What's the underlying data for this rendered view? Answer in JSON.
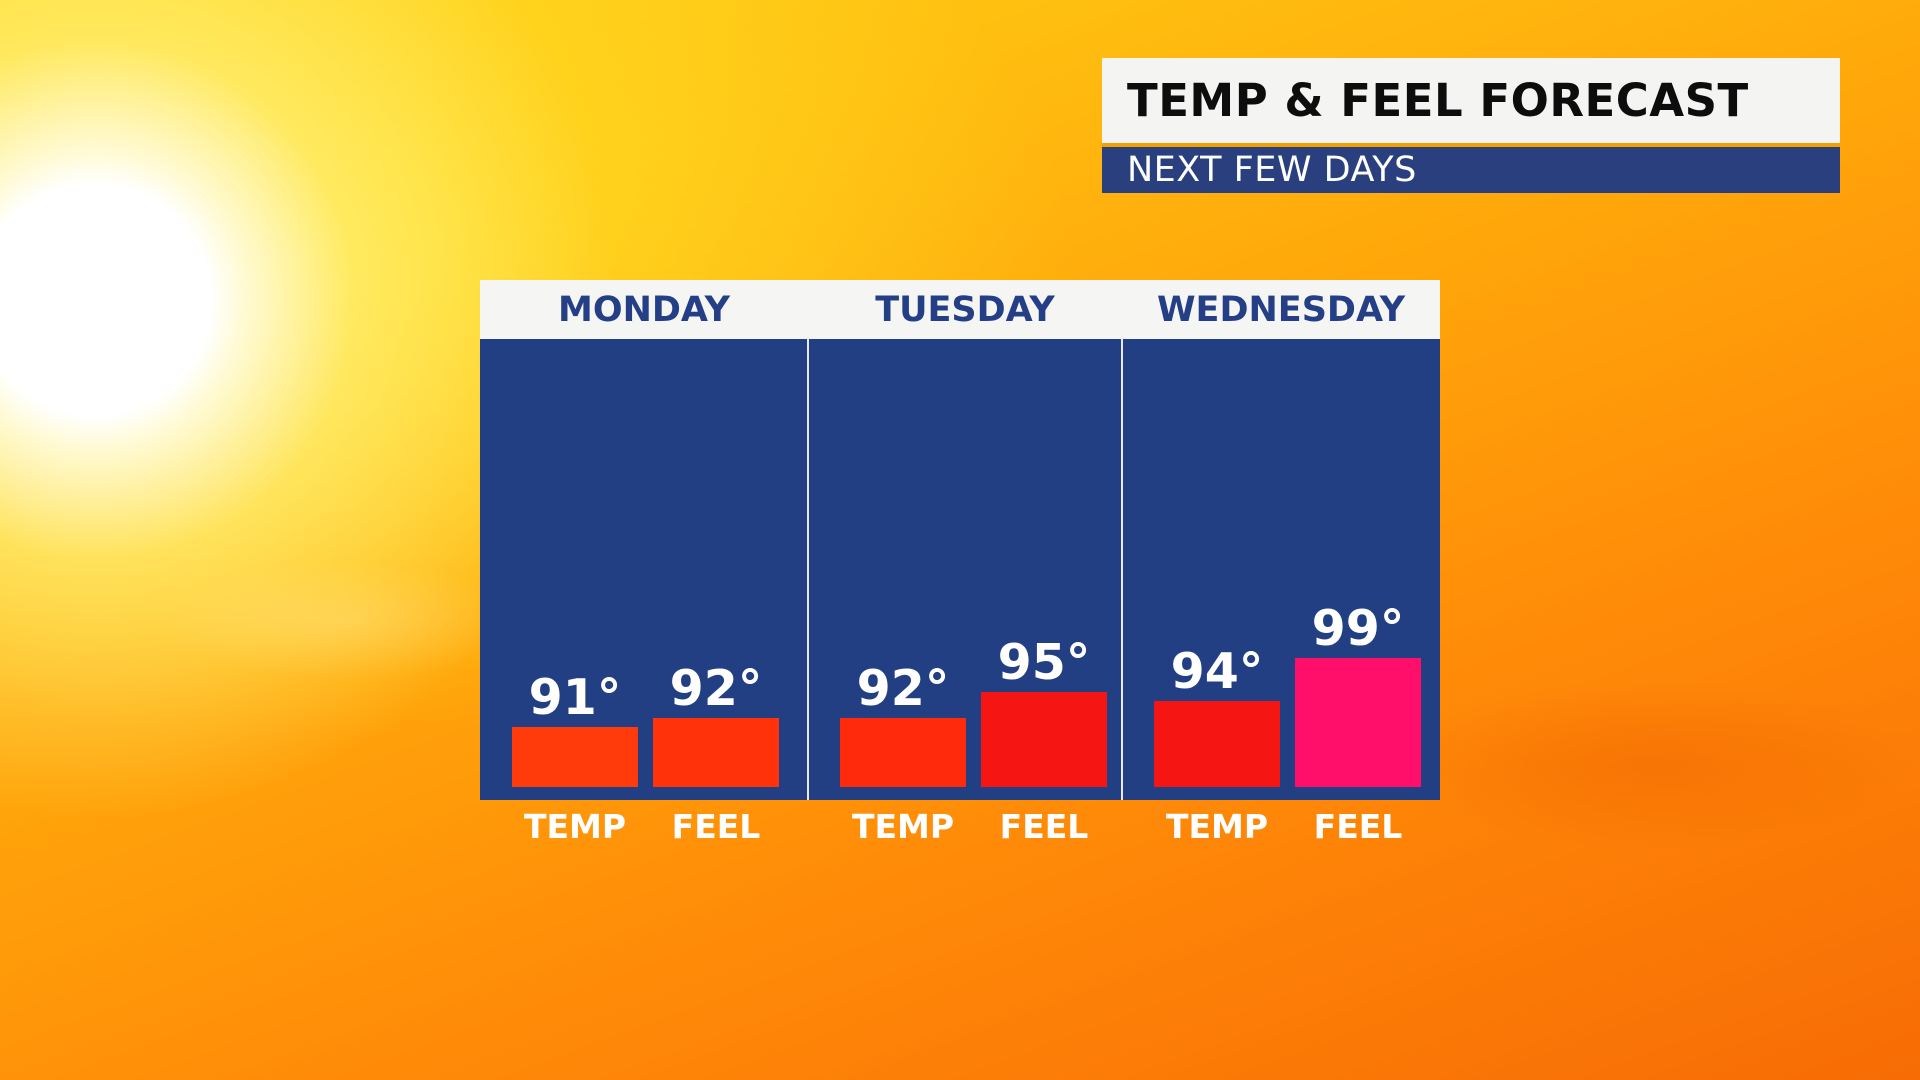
{
  "header": {
    "title": "TEMP & FEEL FORECAST",
    "subtitle": "NEXT FEW DAYS"
  },
  "chart_data": {
    "type": "bar",
    "title": "TEMP & FEEL FORECAST",
    "subtitle": "NEXT FEW DAYS",
    "groups": [
      "MONDAY",
      "TUESDAY",
      "WEDNESDAY"
    ],
    "categories": [
      "TEMP",
      "FEEL"
    ],
    "unit": "°",
    "series": [
      {
        "group": "MONDAY",
        "values": [
          91,
          92
        ],
        "labels": [
          "91°",
          "92°"
        ],
        "colors": [
          "#ff3a0b",
          "#ff3209"
        ]
      },
      {
        "group": "TUESDAY",
        "values": [
          92,
          95
        ],
        "labels": [
          "92°",
          "95°"
        ],
        "colors": [
          "#ff2a0c",
          "#f51512"
        ]
      },
      {
        "group": "WEDNESDAY",
        "values": [
          94,
          99
        ],
        "labels": [
          "94°",
          "99°"
        ],
        "colors": [
          "#f51512",
          "#ff0f6a"
        ]
      }
    ],
    "grid": false,
    "legend": "none"
  },
  "colors": {
    "panel_background": "#233f83",
    "header_background": "#f5f5f3",
    "day_label": "#243f86",
    "title_accent": "#f2a100"
  }
}
